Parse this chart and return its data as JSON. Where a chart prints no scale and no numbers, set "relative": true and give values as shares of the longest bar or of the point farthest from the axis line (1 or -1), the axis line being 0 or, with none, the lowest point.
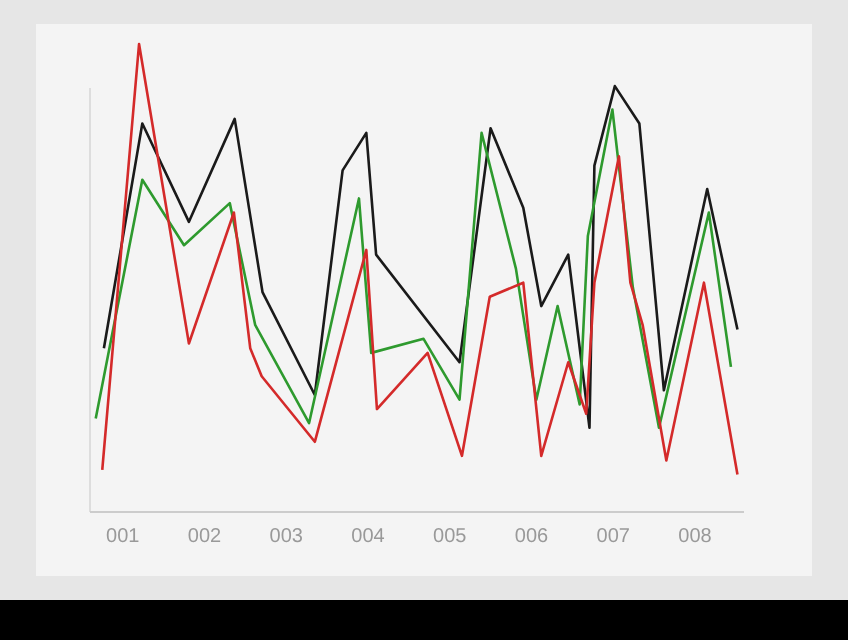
{
  "chart_data": {
    "type": "line",
    "relative": true,
    "xlim": [
      0.6,
      8.6
    ],
    "xticks": [
      {
        "value": 1,
        "label": "001"
      },
      {
        "value": 2,
        "label": "002"
      },
      {
        "value": 3,
        "label": "003"
      },
      {
        "value": 4,
        "label": "004"
      },
      {
        "value": 5,
        "label": "005"
      },
      {
        "value": 6,
        "label": "006"
      },
      {
        "value": 7,
        "label": "007"
      },
      {
        "value": 8,
        "label": "008"
      }
    ],
    "series": [
      {
        "color": "#1a1a1a",
        "x": [
          0.77,
          1.24,
          1.81,
          2.37,
          2.71,
          3.35,
          3.69,
          3.98,
          4.1,
          5.12,
          5.5,
          5.9,
          6.12,
          6.45,
          6.71,
          6.77,
          7.02,
          7.32,
          7.62,
          8.15,
          8.52
        ],
        "values": [
          0.35,
          0.83,
          0.62,
          0.84,
          0.47,
          0.25,
          0.73,
          0.81,
          0.55,
          0.32,
          0.82,
          0.65,
          0.44,
          0.55,
          0.18,
          0.74,
          0.91,
          0.83,
          0.26,
          0.69,
          0.39
        ]
      },
      {
        "color": "#2e9a2e",
        "x": [
          0.67,
          1.24,
          1.75,
          2.31,
          2.62,
          3.28,
          3.89,
          4.04,
          4.68,
          5.12,
          5.39,
          5.81,
          6.06,
          6.32,
          6.59,
          6.69,
          6.99,
          7.24,
          7.56,
          8.17,
          8.44
        ],
        "values": [
          0.2,
          0.71,
          0.57,
          0.66,
          0.4,
          0.19,
          0.67,
          0.34,
          0.37,
          0.24,
          0.81,
          0.52,
          0.24,
          0.44,
          0.23,
          0.59,
          0.86,
          0.48,
          0.18,
          0.64,
          0.31
        ]
      },
      {
        "color": "#d42a2a",
        "x": [
          0.75,
          1.2,
          1.81,
          2.36,
          2.56,
          2.7,
          3.35,
          3.98,
          4.11,
          4.73,
          5.15,
          5.49,
          5.9,
          6.12,
          6.45,
          6.67,
          6.77,
          7.07,
          7.21,
          7.36,
          7.65,
          8.11,
          8.52
        ],
        "values": [
          0.09,
          1,
          0.36,
          0.64,
          0.35,
          0.29,
          0.15,
          0.56,
          0.22,
          0.34,
          0.12,
          0.46,
          0.49,
          0.12,
          0.32,
          0.21,
          0.49,
          0.76,
          0.49,
          0.4,
          0.11,
          0.49,
          0.08
        ]
      }
    ],
    "marker": "none",
    "line_style": "solid"
  }
}
